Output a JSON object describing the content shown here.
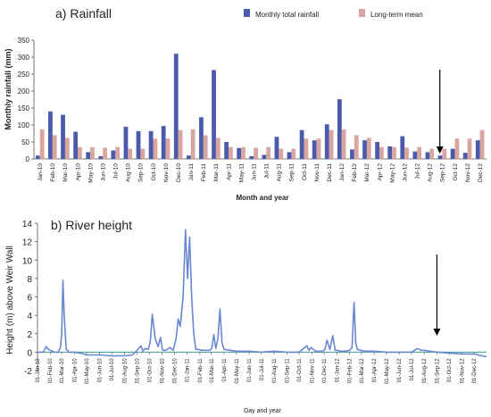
{
  "chart_data": [
    {
      "type": "bar",
      "title": "a) Rainfall",
      "xlabel": "Month and year",
      "ylabel": "Monthly rainfall (mm)",
      "ylim": [
        0,
        350
      ],
      "yticks": [
        0,
        50,
        100,
        150,
        200,
        250,
        300,
        350
      ],
      "legend_position": "top-right",
      "categories": [
        "Jan-10",
        "Feb-10",
        "Mar-10",
        "Apr-10",
        "May-10",
        "Jun-10",
        "Jul-10",
        "Aug-10",
        "Sep-10",
        "Oct-10",
        "Nov-10",
        "Dec-10",
        "Jan-11",
        "Feb-11",
        "Mar-11",
        "Apr-11",
        "May-11",
        "Jun-11",
        "Jul-11",
        "Aug-11",
        "Sep-11",
        "Oct-11",
        "Nov-11",
        "Dec-11",
        "Jan-12",
        "Feb-12",
        "Mar-12",
        "Apr-12",
        "May-12",
        "Jun-12",
        "Jul-12",
        "Aug-12",
        "Sep-12",
        "Oct-12",
        "Nov-12",
        "Dec-12"
      ],
      "series": [
        {
          "name": "Monthly total rainfall",
          "color": "#4a5bab",
          "values": [
            10,
            140,
            130,
            80,
            20,
            8,
            25,
            95,
            82,
            82,
            97,
            310,
            10,
            123,
            262,
            50,
            32,
            8,
            12,
            65,
            20,
            85,
            55,
            102,
            176,
            28,
            55,
            50,
            37,
            67,
            22,
            20,
            10,
            30,
            18,
            55
          ]
        },
        {
          "name": "Long-term mean",
          "color": "#d8a5a0",
          "values": [
            87,
            70,
            62,
            35,
            35,
            33,
            35,
            30,
            30,
            60,
            60,
            85,
            87,
            70,
            62,
            35,
            35,
            33,
            35,
            30,
            30,
            60,
            60,
            85,
            87,
            70,
            62,
            35,
            35,
            33,
            35,
            30,
            30,
            60,
            60,
            85
          ]
        }
      ],
      "annotations": [
        {
          "type": "arrow",
          "at_category": "Sep-12"
        }
      ]
    },
    {
      "type": "line",
      "title": "b) River height",
      "xlabel": "Day and year",
      "ylabel": "Height (m) above Weir Wall",
      "ylim": [
        -2,
        14
      ],
      "yticks": [
        -2,
        0,
        2,
        4,
        6,
        8,
        10,
        12,
        14
      ],
      "xticks": [
        "01-Jan-10",
        "01-Feb-10",
        "01-Mar-10",
        "01-Apr-10",
        "01-May-10",
        "01-Jun-10",
        "01-Jul-10",
        "01-Aug-10",
        "01-Sep-10",
        "01-Oct-10",
        "01-Nov-10",
        "01-Dec-10",
        "01-Jan-11",
        "01-Feb-11",
        "01-Mar-11",
        "01-Apr-11",
        "01-May-11",
        "01-Jun-11",
        "01-Jul-11",
        "01-Aug-11",
        "01-Sep-11",
        "01-Oct-11",
        "01-Nov-11",
        "01-Dec-11",
        "01-Jan-12",
        "01-Feb-12",
        "01-Mar-12",
        "01-Apr-12",
        "01-May-12",
        "01-Jun-12",
        "01-Jul-12",
        "01-Aug-12",
        "01-Sep-12",
        "01-Oct-12",
        "01-Nov-12",
        "01-Dec-12"
      ],
      "reference_line_y": 0,
      "series": [
        {
          "color": "#6b87d1",
          "x": [
            "2010-01-01",
            "2010-01-15",
            "2010-01-22",
            "2010-01-28",
            "2010-02-05",
            "2010-02-12",
            "2010-02-20",
            "2010-02-26",
            "2010-03-01",
            "2010-03-04",
            "2010-03-07",
            "2010-03-12",
            "2010-03-20",
            "2010-04-01",
            "2010-04-15",
            "2010-05-01",
            "2010-06-01",
            "2010-07-01",
            "2010-08-01",
            "2010-08-20",
            "2010-09-01",
            "2010-09-10",
            "2010-09-15",
            "2010-09-20",
            "2010-09-28",
            "2010-10-03",
            "2010-10-08",
            "2010-10-15",
            "2010-10-22",
            "2010-10-28",
            "2010-11-02",
            "2010-11-10",
            "2010-11-20",
            "2010-11-28",
            "2010-12-05",
            "2010-12-10",
            "2010-12-15",
            "2010-12-22",
            "2010-12-28",
            "2011-01-02",
            "2011-01-07",
            "2011-01-12",
            "2011-01-17",
            "2011-01-22",
            "2011-01-28",
            "2011-02-05",
            "2011-02-15",
            "2011-02-25",
            "2011-03-02",
            "2011-03-07",
            "2011-03-12",
            "2011-03-17",
            "2011-03-22",
            "2011-03-27",
            "2011-04-01",
            "2011-04-15",
            "2011-05-01",
            "2011-06-01",
            "2011-07-01",
            "2011-08-01",
            "2011-09-01",
            "2011-10-01",
            "2011-10-20",
            "2011-10-25",
            "2011-10-30",
            "2011-11-10",
            "2011-11-28",
            "2011-12-03",
            "2011-12-08",
            "2011-12-15",
            "2011-12-22",
            "2011-12-28",
            "2012-01-02",
            "2012-01-10",
            "2012-01-20",
            "2012-02-01",
            "2012-02-07",
            "2012-02-12",
            "2012-02-16",
            "2012-02-20",
            "2012-02-28",
            "2012-03-10",
            "2012-04-01",
            "2012-05-01",
            "2012-06-01",
            "2012-07-01",
            "2012-07-15",
            "2012-07-25",
            "2012-08-01",
            "2012-08-15",
            "2012-09-01",
            "2012-10-01",
            "2012-11-01",
            "2012-12-01",
            "2012-12-20",
            "2012-12-31"
          ],
          "y": [
            0,
            0,
            0.6,
            0.3,
            0.1,
            0,
            0,
            0.5,
            2,
            7.8,
            4,
            0.3,
            0,
            0,
            -0.1,
            -0.3,
            -0.3,
            -0.4,
            -0.4,
            -0.3,
            0.2,
            0.7,
            0.1,
            0.4,
            0.3,
            1.1,
            4.1,
            1.5,
            0.6,
            1.6,
            0.2,
            0.2,
            0.5,
            0.2,
            1.5,
            3.6,
            2.8,
            6,
            13.3,
            8,
            12.5,
            6,
            2,
            0.3,
            0.3,
            0.2,
            0.2,
            0.2,
            0.4,
            1.9,
            0.4,
            1.5,
            4.7,
            1,
            0.3,
            0.2,
            0.1,
            0.1,
            0,
            0.1,
            0,
            0,
            0.7,
            0.2,
            0.5,
            0.1,
            0.1,
            0.3,
            1.3,
            0.3,
            1.8,
            0.2,
            0.2,
            0.1,
            0.1,
            0.2,
            0.5,
            5.4,
            1,
            0.3,
            0.2,
            0.1,
            0.1,
            0,
            0,
            0,
            0.4,
            0.2,
            0.2,
            0.1,
            0,
            -0.1,
            -0.2,
            -0.2,
            -0.4,
            -0.5
          ]
        }
      ],
      "annotations": [
        {
          "type": "arrow",
          "at_date": "2012-09-01"
        }
      ]
    }
  ]
}
